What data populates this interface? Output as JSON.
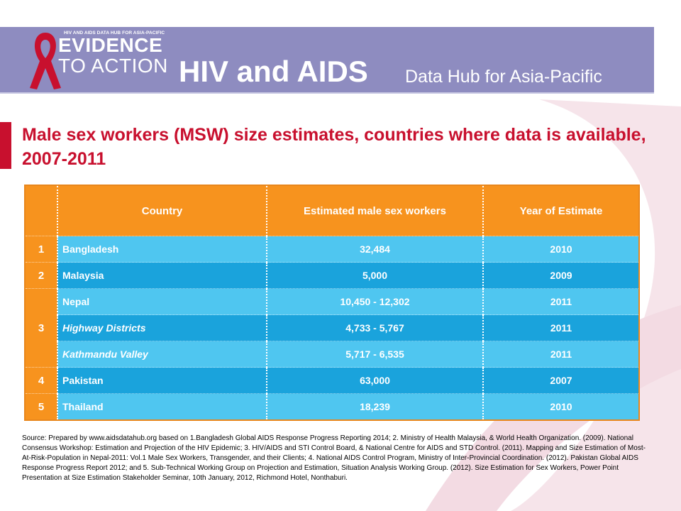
{
  "logo": {
    "top_text": "HIV AND AIDS DATA HUB FOR ASIA-PACIFIC",
    "line1": "EVIDENCE",
    "line2": "TO ACTION"
  },
  "header": {
    "title": "HIV and AIDS",
    "subtitle": "Data Hub for Asia-Pacific"
  },
  "slide_title": "Male sex workers (MSW) size estimates, countries where data is available, 2007-2011",
  "table": {
    "headers": [
      "",
      "Country",
      "Estimated male sex workers",
      "Year of Estimate"
    ],
    "rows": [
      {
        "num": "1",
        "country": "Bangladesh",
        "estimate": "32,484",
        "year": "2010"
      },
      {
        "num": "2",
        "country": "Malaysia",
        "estimate": "5,000",
        "year": "2009"
      },
      {
        "num": "3",
        "country": "Nepal",
        "estimate": "10,450 - 12,302",
        "year": "2011"
      },
      {
        "num": "",
        "country": "Highway Districts",
        "estimate": "4,733 - 5,767",
        "year": "2011"
      },
      {
        "num": "",
        "country": "Kathmandu Valley",
        "estimate": "5,717 - 6,535",
        "year": "2011"
      },
      {
        "num": "4",
        "country": "Pakistan",
        "estimate": "63,000",
        "year": "2007"
      },
      {
        "num": "5",
        "country": "Thailand",
        "estimate": "18,239",
        "year": "2010"
      }
    ]
  },
  "source": "Source: Prepared by www.aidsdatahub.org based on 1.Bangladesh Global AIDS Response Progress Reporting 2014; 2. Ministry of Health Malaysia, & World Health Organization. (2009). National Consensus Workshop: Estimation and Projection of the HIV Epidemic; 3. HIV/AIDS and STI Control Board, & National Centre for AIDS and STD Control. (2011). Mapping and Size Estimation of Most-At-Risk-Population in Nepal-2011: Vol.1 Male Sex Workers, Transgender, and their Clients; 4. National AIDS Control Program, Ministry of Inter-Provincial Coordination. (2012). Pakistan Global AIDS Response Progress Report 2012; and 5. Sub-Technical Working Group on Projection and Estimation, Situation Analysis Working Group. (2012). Size Estimation for Sex Workers, Power Point Presentation at Size Estimation Stakeholder Seminar, 10th January, 2012, Richmond Hotel, Nonthaburi.",
  "colors": {
    "header_bg": "#8e8cc0",
    "title_red": "#c8102e",
    "table_orange": "#f7931e",
    "row_light_blue": "#4fc6f0",
    "row_dark_blue": "#1aa3dc"
  }
}
